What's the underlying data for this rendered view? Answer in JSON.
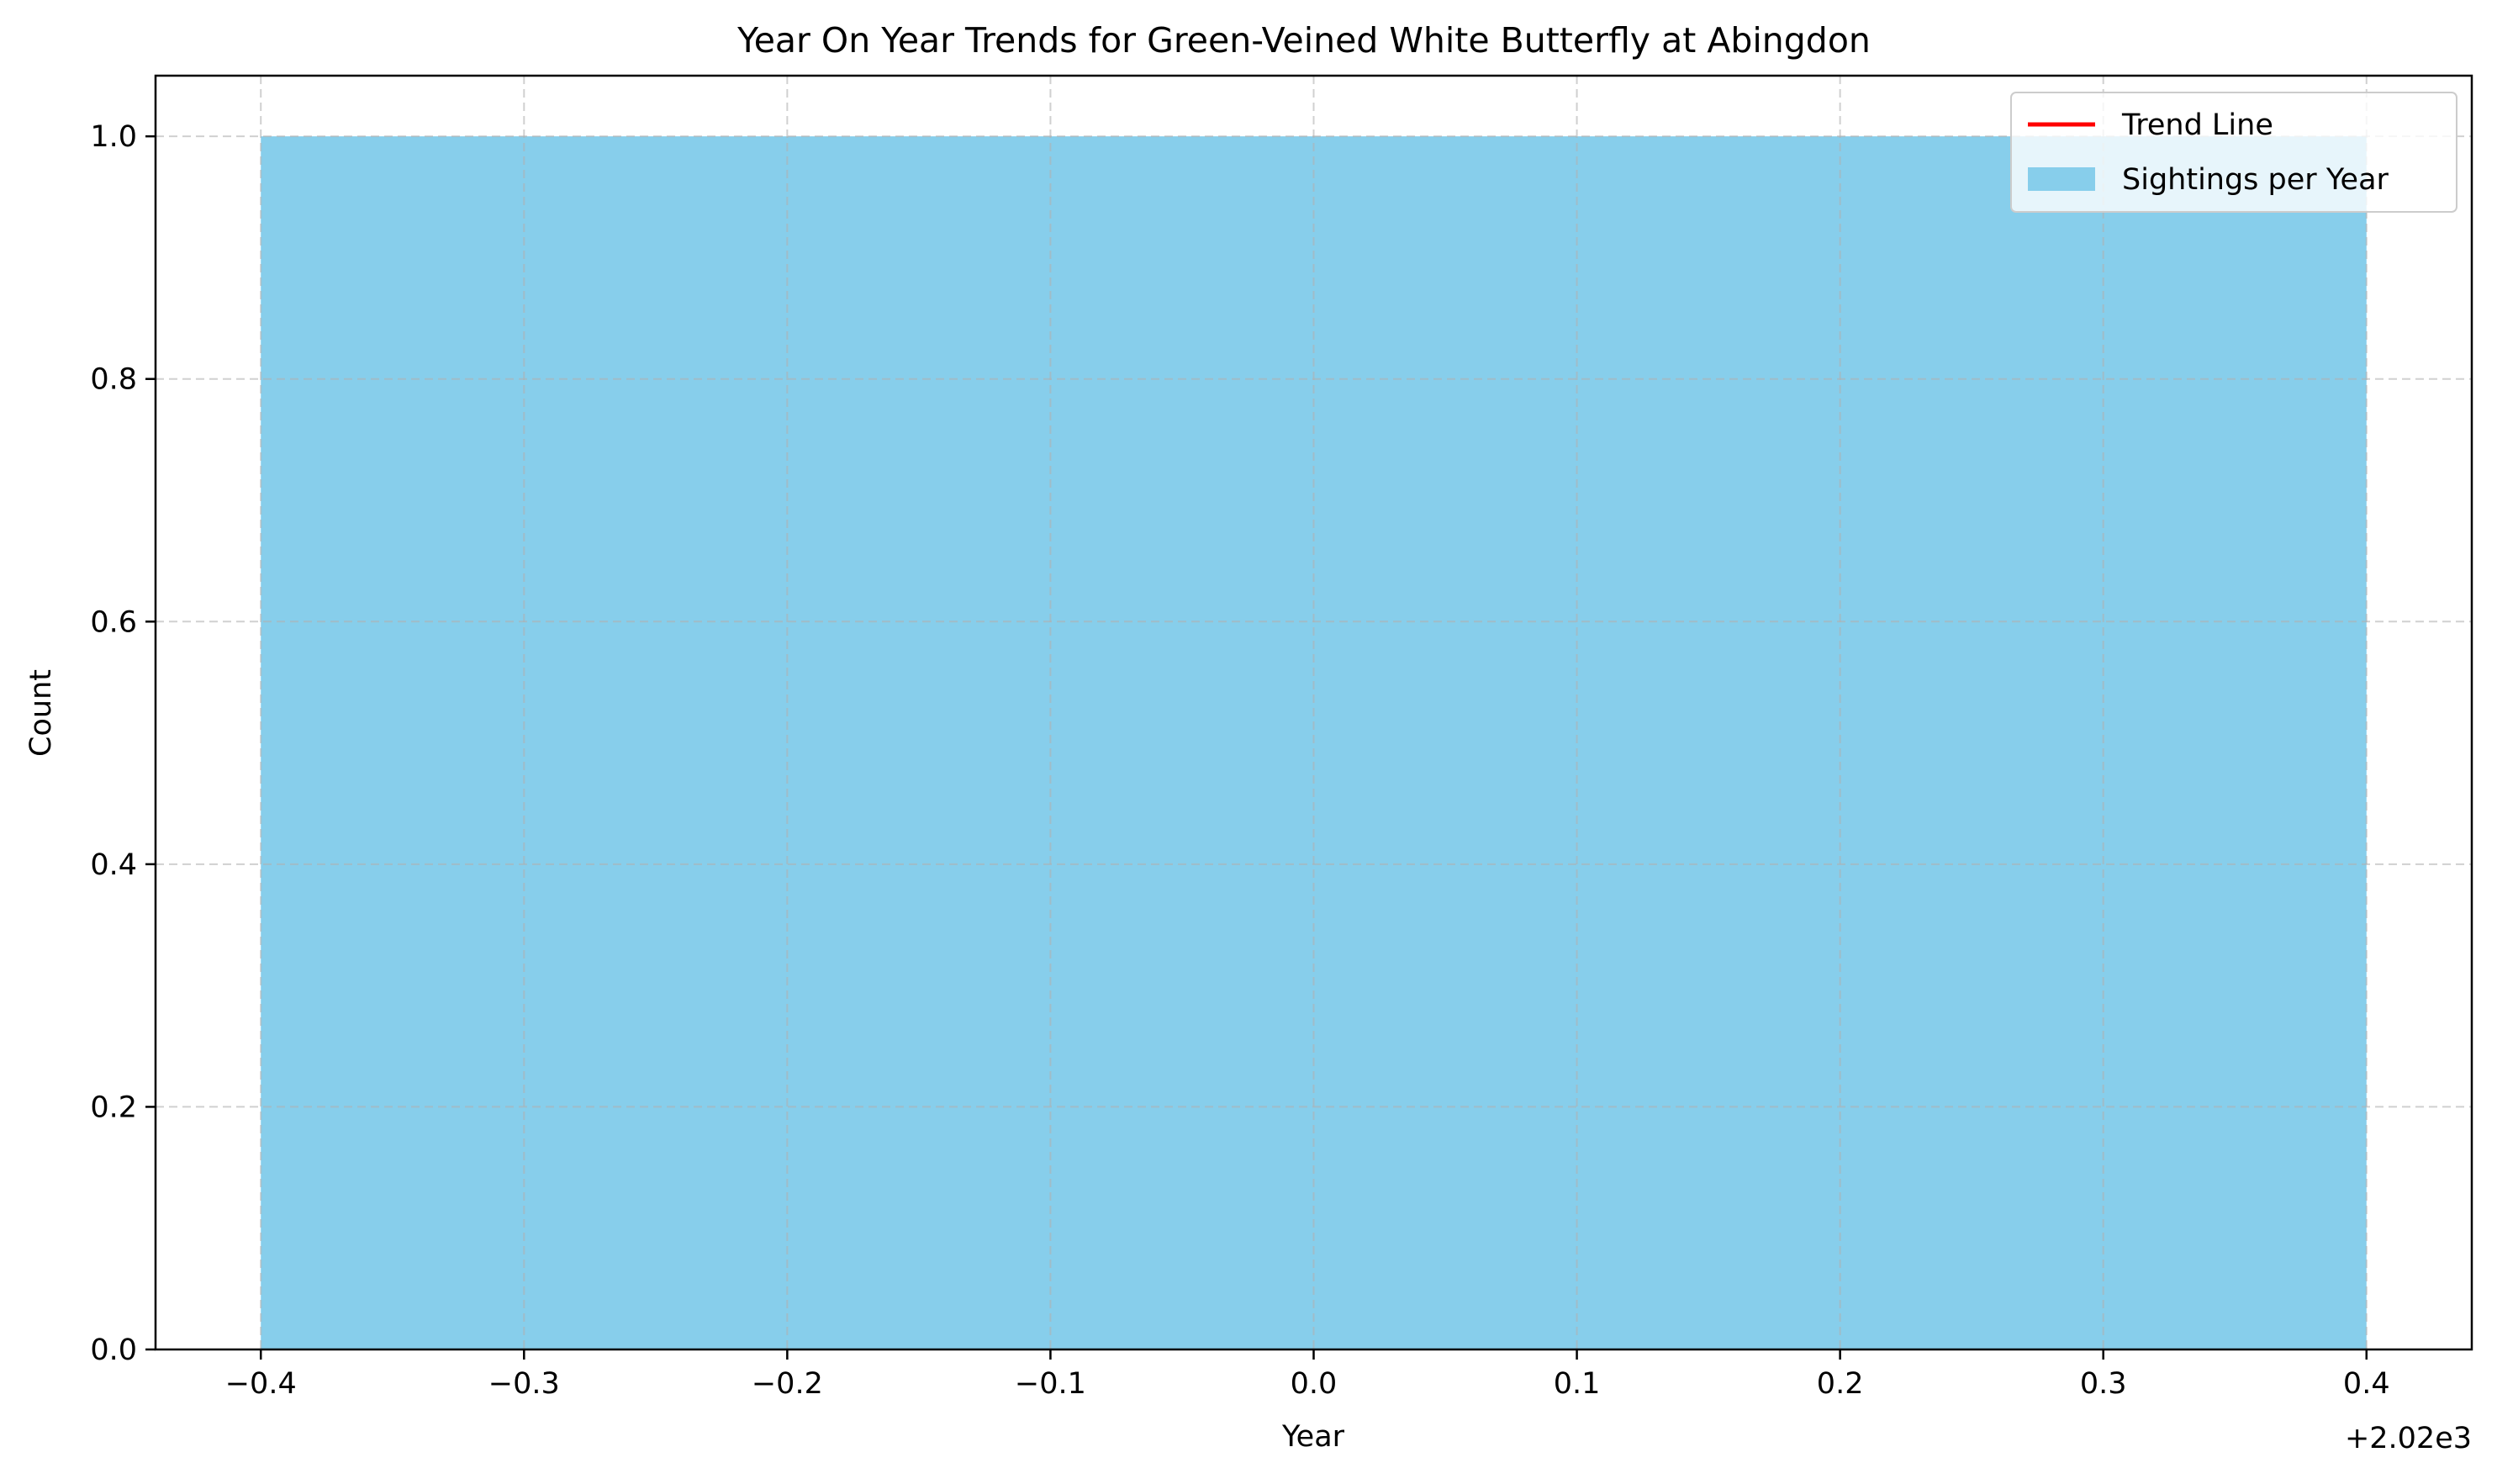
{
  "chart_data": {
    "type": "bar",
    "title": "Year On Year Trends for Green-Veined White Butterfly at Abingdon",
    "xlabel": "Year",
    "ylabel": "Count",
    "x_offset_label": "+2.02e3",
    "x_offset": 2020,
    "xlim": [
      2019.56,
      2020.44
    ],
    "ylim": [
      0,
      1.05
    ],
    "x_ticks": [
      -0.4,
      -0.3,
      -0.2,
      -0.1,
      0.0,
      0.1,
      0.2,
      0.3,
      0.4
    ],
    "x_tick_labels": [
      "−0.4",
      "−0.3",
      "−0.2",
      "−0.1",
      "0.0",
      "0.1",
      "0.2",
      "0.3",
      "0.4"
    ],
    "y_ticks": [
      0.0,
      0.2,
      0.4,
      0.6,
      0.8,
      1.0
    ],
    "y_tick_labels": [
      "0.0",
      "0.2",
      "0.4",
      "0.6",
      "0.8",
      "1.0"
    ],
    "grid": true,
    "legend_position": "top-right",
    "series": [
      {
        "name": "Sightings per Year",
        "type": "bar",
        "color": "#87CEEB",
        "bars": [
          {
            "year": 2020,
            "width": 0.8,
            "count": 1
          }
        ]
      },
      {
        "name": "Trend Line",
        "type": "line",
        "color": "#FF0000",
        "x": [
          2020
        ],
        "y": [
          1
        ]
      }
    ],
    "legend": [
      {
        "label": "Trend Line",
        "kind": "line",
        "color": "#FF0000"
      },
      {
        "label": "Sightings per Year",
        "kind": "patch",
        "color": "#87CEEB"
      }
    ]
  }
}
